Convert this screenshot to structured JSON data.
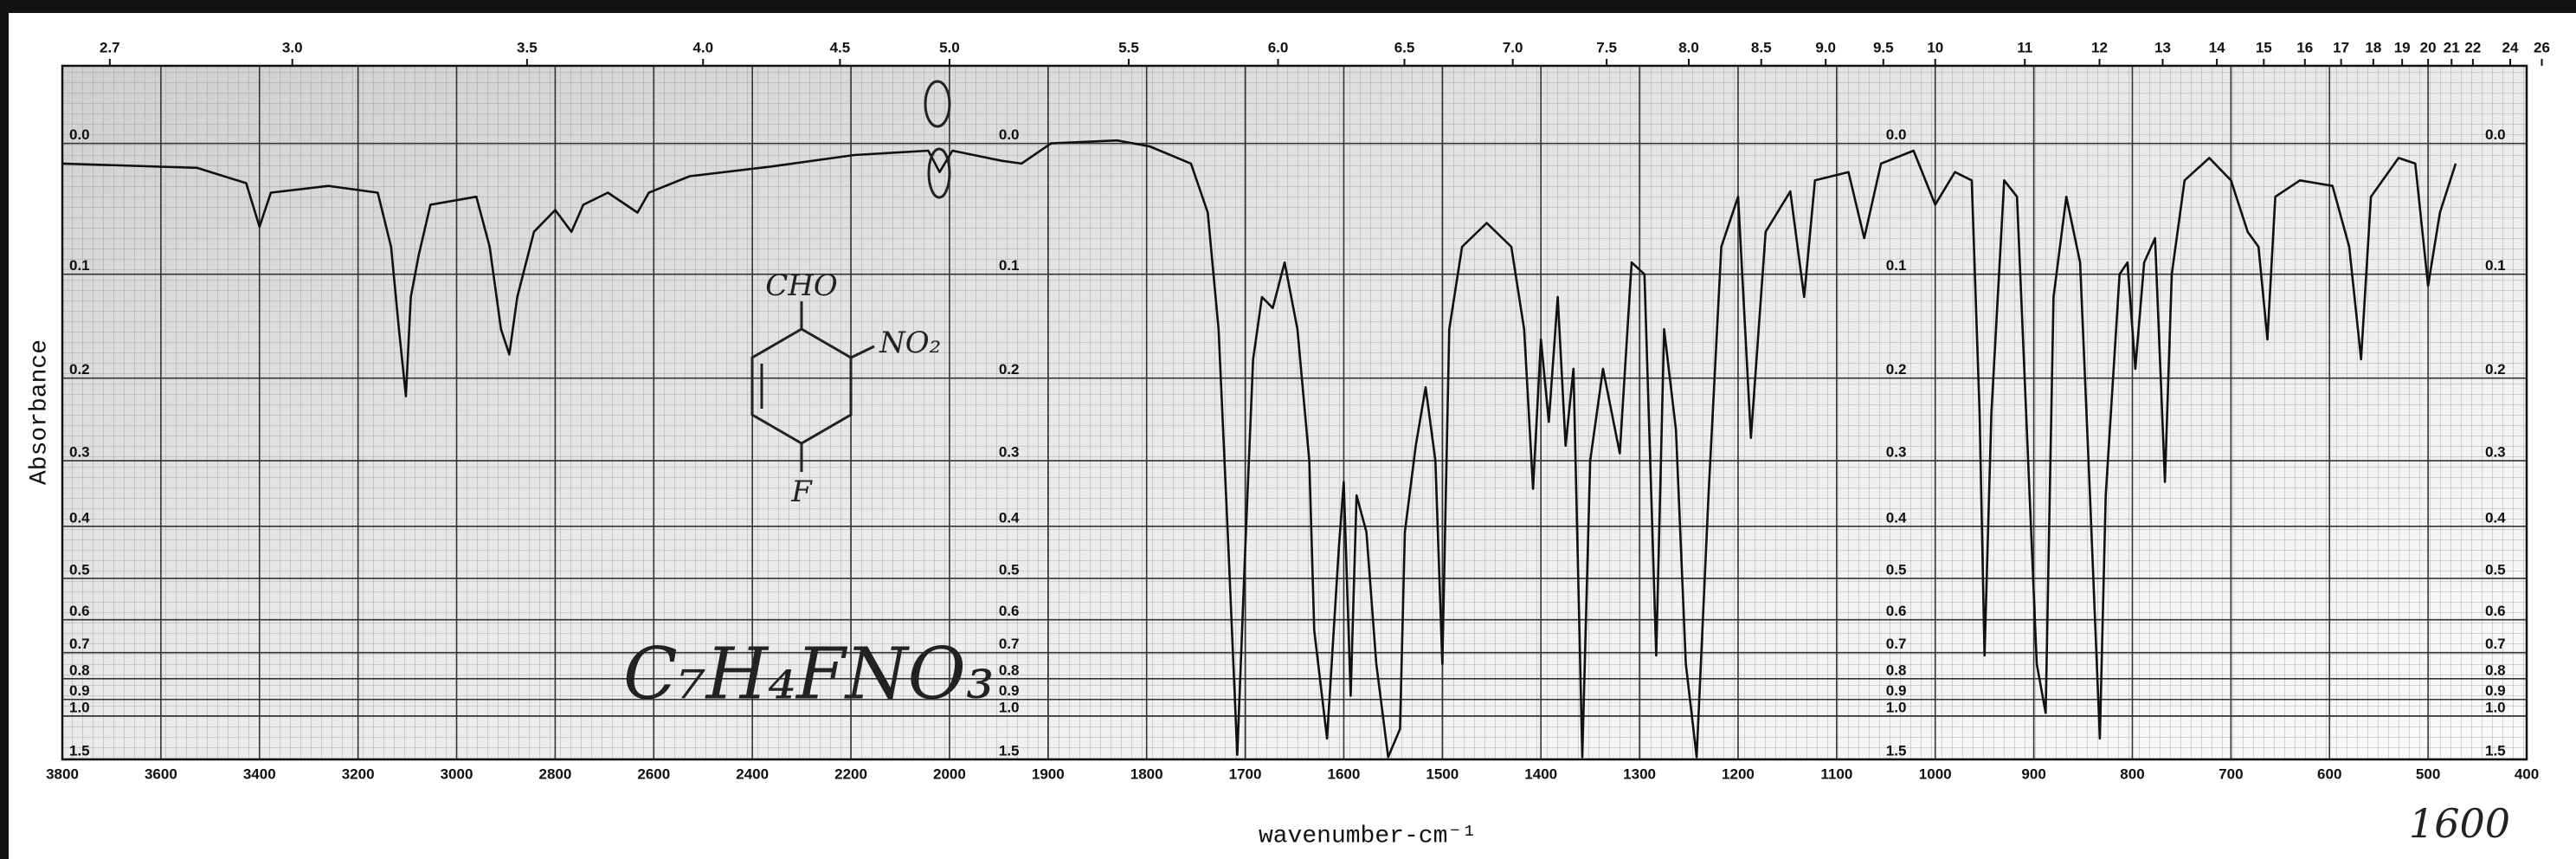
{
  "chart_data": {
    "type": "line",
    "y_label": "Absorbance",
    "x_label": "wavenumber-cm⁻¹",
    "formula": "C₇H₄FNO₃",
    "structure_labels": [
      "CHO",
      "NO₂",
      "F"
    ],
    "note": "1600",
    "color": "#111111",
    "yscale": "absorbance",
    "grid": true,
    "xlim": [
      3800,
      400
    ],
    "ylim": [
      -0.05,
      1.5
    ],
    "xticks": [
      3800,
      3600,
      3400,
      3200,
      3000,
      2800,
      2600,
      2400,
      2200,
      2000,
      1900,
      1800,
      1700,
      1600,
      1500,
      1400,
      1300,
      1200,
      1100,
      1000,
      900,
      800,
      700,
      600,
      500,
      400
    ],
    "x2ticks": [
      2.7,
      {
        "value": 3,
        "label": "3.0"
      },
      3.5,
      {
        "value": 4,
        "label": "4.0"
      },
      4.5,
      {
        "value": 5,
        "label": "5.0"
      },
      5.5,
      {
        "value": 6,
        "label": "6.0"
      },
      6.5,
      {
        "value": 7,
        "label": "7.0"
      },
      7.5,
      {
        "value": 8,
        "label": "8.0"
      },
      8.5,
      {
        "value": 9,
        "label": "9.0"
      },
      9.5,
      10,
      11,
      12,
      13,
      14,
      15,
      16,
      17,
      18,
      19,
      20,
      21,
      22,
      24,
      26
    ],
    "yticks": [
      {
        "value": 0,
        "label": "0.0"
      },
      0.1,
      0.2,
      0.3,
      0.4,
      0.5,
      0.6,
      0.7,
      0.8,
      0.9,
      {
        "value": 1,
        "label": "1.0"
      },
      1.5
    ],
    "x": [
      3800,
      3527,
      3427,
      3400,
      3377,
      3260,
      3160,
      3133,
      3117,
      3103,
      3093,
      3077,
      3053,
      2960,
      2933,
      2910,
      2893,
      2877,
      2843,
      2800,
      2767,
      2743,
      2693,
      2633,
      2610,
      2527,
      2360,
      2193,
      2043,
      2020,
      1997,
      1947,
      1927,
      1897,
      1830,
      1797,
      1755,
      1738,
      1727,
      1717,
      1708,
      1700,
      1692,
      1683,
      1672,
      1660,
      1647,
      1635,
      1630,
      1617,
      1605,
      1600,
      1593,
      1587,
      1577,
      1567,
      1555,
      1543,
      1538,
      1527,
      1517,
      1507,
      1500,
      1493,
      1480,
      1455,
      1430,
      1417,
      1408,
      1400,
      1392,
      1383,
      1375,
      1367,
      1358,
      1350,
      1337,
      1320,
      1308,
      1295,
      1283,
      1275,
      1263,
      1253,
      1242,
      1230,
      1217,
      1200,
      1187,
      1172,
      1147,
      1133,
      1122,
      1088,
      1072,
      1055,
      1022,
      1000,
      980,
      963,
      955,
      950,
      943,
      930,
      917,
      897,
      888,
      880,
      867,
      853,
      843,
      833,
      827,
      813,
      805,
      797,
      788,
      777,
      767,
      760,
      747,
      722,
      700,
      683,
      672,
      663,
      655,
      630,
      597,
      580,
      568,
      558,
      530,
      513,
      500,
      488,
      472
    ],
    "values": [
      0.014,
      0.017,
      0.028,
      0.061,
      0.035,
      0.03,
      0.035,
      0.077,
      0.15,
      0.22,
      0.12,
      0.084,
      0.044,
      0.038,
      0.077,
      0.15,
      0.175,
      0.12,
      0.065,
      0.048,
      0.065,
      0.044,
      0.035,
      0.05,
      0.035,
      0.023,
      0.016,
      0.008,
      0.005,
      0.02,
      0.005,
      0.012,
      0.014,
      0.0,
      -0.002,
      0.002,
      0.014,
      0.05,
      0.15,
      0.44,
      1.41,
      0.44,
      0.18,
      0.12,
      0.13,
      0.09,
      0.15,
      0.3,
      0.63,
      1.19,
      0.44,
      0.33,
      0.88,
      0.35,
      0.41,
      0.74,
      1.45,
      1.1,
      0.41,
      0.28,
      0.21,
      0.3,
      0.74,
      0.15,
      0.077,
      0.058,
      0.077,
      0.15,
      0.34,
      0.16,
      0.25,
      0.12,
      0.28,
      0.19,
      1.45,
      0.3,
      0.19,
      0.29,
      0.09,
      0.1,
      0.71,
      0.15,
      0.26,
      0.74,
      1.45,
      0.35,
      0.077,
      0.038,
      0.27,
      0.065,
      0.034,
      0.12,
      0.026,
      0.02,
      0.07,
      0.014,
      0.005,
      0.044,
      0.02,
      0.026,
      0.24,
      0.71,
      0.24,
      0.026,
      0.038,
      0.74,
      0.98,
      0.12,
      0.038,
      0.09,
      0.35,
      1.19,
      0.35,
      0.1,
      0.09,
      0.19,
      0.09,
      0.07,
      0.33,
      0.1,
      0.026,
      0.01,
      0.026,
      0.065,
      0.077,
      0.16,
      0.038,
      0.026,
      0.03,
      0.077,
      0.18,
      0.038,
      0.01,
      0.014,
      0.11,
      0.05,
      0.014
    ]
  }
}
